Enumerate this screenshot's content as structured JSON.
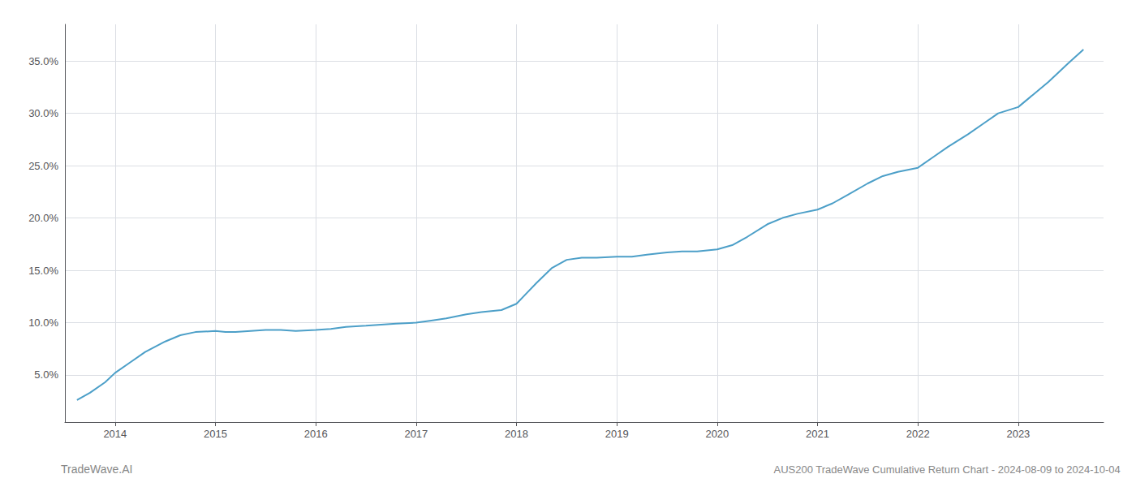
{
  "chart_data": {
    "type": "line",
    "title": "AUS200 TradeWave Cumulative Return Chart - 2024-08-09 to 2024-10-04",
    "annotations": [
      "TradeWave.AI"
    ],
    "x": [
      2013.62,
      2013.75,
      2013.9,
      2014.0,
      2014.15,
      2014.3,
      2014.5,
      2014.65,
      2014.8,
      2015.0,
      2015.1,
      2015.2,
      2015.35,
      2015.5,
      2015.65,
      2015.8,
      2016.0,
      2016.15,
      2016.3,
      2016.5,
      2016.65,
      2016.8,
      2017.0,
      2017.15,
      2017.3,
      2017.5,
      2017.65,
      2017.75,
      2017.85,
      2018.0,
      2018.1,
      2018.2,
      2018.35,
      2018.5,
      2018.65,
      2018.8,
      2019.0,
      2019.15,
      2019.3,
      2019.5,
      2019.65,
      2019.8,
      2020.0,
      2020.15,
      2020.3,
      2020.5,
      2020.65,
      2020.8,
      2021.0,
      2021.15,
      2021.3,
      2021.5,
      2021.65,
      2021.8,
      2022.0,
      2022.15,
      2022.3,
      2022.5,
      2022.65,
      2022.8,
      2023.0,
      2023.15,
      2023.3,
      2023.5,
      2023.65
    ],
    "values": [
      0.026,
      0.033,
      0.043,
      0.052,
      0.062,
      0.072,
      0.082,
      0.088,
      0.091,
      0.092,
      0.091,
      0.091,
      0.092,
      0.093,
      0.093,
      0.092,
      0.093,
      0.094,
      0.096,
      0.097,
      0.098,
      0.099,
      0.1,
      0.102,
      0.104,
      0.108,
      0.11,
      0.111,
      0.112,
      0.118,
      0.128,
      0.138,
      0.152,
      0.16,
      0.162,
      0.162,
      0.163,
      0.163,
      0.165,
      0.167,
      0.168,
      0.168,
      0.17,
      0.174,
      0.182,
      0.194,
      0.2,
      0.204,
      0.208,
      0.214,
      0.222,
      0.233,
      0.24,
      0.244,
      0.248,
      0.258,
      0.268,
      0.28,
      0.29,
      0.3,
      0.306,
      0.318,
      0.33,
      0.348,
      0.361
    ],
    "color": "#4c9fc8",
    "xlim": [
      2013.5,
      2023.85
    ],
    "ylim": [
      0.005,
      0.385
    ],
    "xticks": [
      2014,
      2015,
      2016,
      2017,
      2018,
      2019,
      2020,
      2021,
      2022,
      2023
    ],
    "yticks": [
      {
        "value": 0.05,
        "label": "5.0%"
      },
      {
        "value": 0.1,
        "label": "10.0%"
      },
      {
        "value": 0.15,
        "label": "15.0%"
      },
      {
        "value": 0.2,
        "label": "20.0%"
      },
      {
        "value": 0.25,
        "label": "25.0%"
      },
      {
        "value": 0.3,
        "label": "30.0%"
      },
      {
        "value": 0.35,
        "label": "35.0%"
      }
    ],
    "grid": true
  }
}
